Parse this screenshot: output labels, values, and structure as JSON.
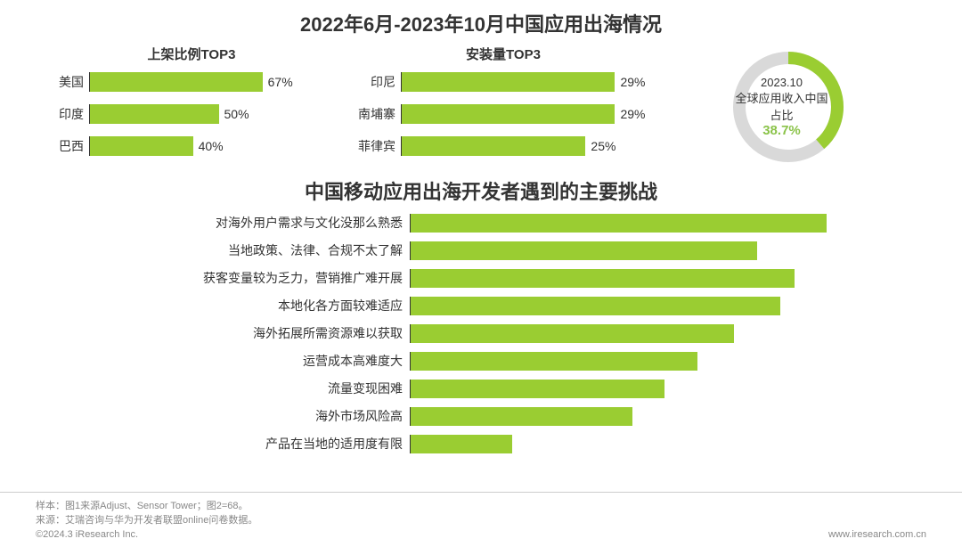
{
  "title_main": "2022年6月-2023年10月中国应用出海情况",
  "title_mid": "中国移动应用出海开发者遇到的主要挑战",
  "top_chart_1": {
    "type": "bar",
    "orientation": "horizontal",
    "title": "上架比例TOP3",
    "bar_color": "#9acd32",
    "axis_color": "#333333",
    "label_fontsize": 14,
    "value_fontsize": 14,
    "max_pct": 100,
    "rows": [
      {
        "label": "美国",
        "value": 67,
        "value_label": "67%"
      },
      {
        "label": "印度",
        "value": 50,
        "value_label": "50%"
      },
      {
        "label": "巴西",
        "value": 40,
        "value_label": "40%"
      }
    ]
  },
  "top_chart_2": {
    "type": "bar",
    "orientation": "horizontal",
    "title": "安装量TOP3",
    "bar_color": "#9acd32",
    "axis_color": "#333333",
    "label_fontsize": 14,
    "value_fontsize": 14,
    "max_pct": 35,
    "rows": [
      {
        "label": "印尼",
        "value": 29,
        "value_label": "29%"
      },
      {
        "label": "南埔寨",
        "value": 29,
        "value_label": "29%"
      },
      {
        "label": "菲律宾",
        "value": 25,
        "value_label": "25%"
      }
    ]
  },
  "donut": {
    "type": "pie",
    "ring_width": 14,
    "radius": 62,
    "value_pct": 38.7,
    "value_label": "38.7%",
    "line1": "2023.10",
    "line2": "全球应用收入中国占比",
    "color_main": "#9acd32",
    "color_rest": "#d9d9d9",
    "background_color": "#ffffff",
    "center_label_color": "#333333",
    "pct_color": "#8bc34a",
    "center_fontsize": 13,
    "pct_fontsize": 15
  },
  "challenges": {
    "type": "bar",
    "orientation": "horizontal",
    "bar_color": "#9acd32",
    "axis_color": "#333333",
    "label_fontsize": 14,
    "max_pct": 100,
    "rows": [
      {
        "label": "对海外用户需求与文化没那么熟悉",
        "value": 90
      },
      {
        "label": "当地政策、法律、合规不太了解",
        "value": 75
      },
      {
        "label": "获客变量较为乏力，营销推广难开展",
        "value": 83
      },
      {
        "label": "本地化各方面较难适应",
        "value": 80
      },
      {
        "label": "海外拓展所需资源难以获取",
        "value": 70
      },
      {
        "label": "运营成本高难度大",
        "value": 62
      },
      {
        "label": "流量变现困难",
        "value": 55
      },
      {
        "label": "海外市场风险高",
        "value": 48
      },
      {
        "label": "产品在当地的适用度有限",
        "value": 22
      }
    ]
  },
  "footer": {
    "sample": "样本：图1来源Adjust、Sensor Tower；图2=68。",
    "source": "来源：艾瑞咨询与华为开发者联盟online问卷数据。",
    "copyright": "©2024.3 iResearch Inc.",
    "url": "www.iresearch.com.cn",
    "text_color": "#888888",
    "fontsize": 11
  },
  "colors": {
    "background": "#ffffff",
    "text": "#333333",
    "accent": "#9acd32"
  }
}
